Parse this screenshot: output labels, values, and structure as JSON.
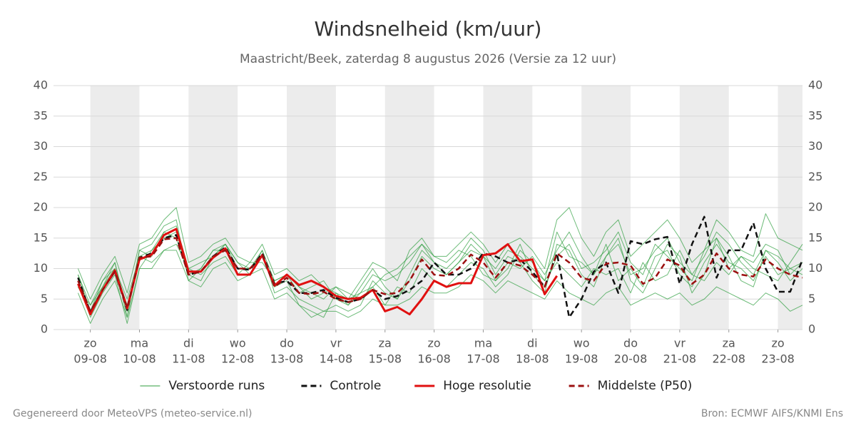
{
  "chart_data": {
    "type": "line",
    "title": "Windsnelheid (km/uur)",
    "subtitle": "Maastricht/Beek, zaterdag  8 augustus 2026 (Versie za 12 uur)",
    "footer_left": "Gegenereerd door MeteoVPS (meteo-service.nl)",
    "footer_right": "Bron: ECMWF AIFS/KNMI Ens",
    "x": [
      "2026-08-08T18:00",
      "2026-08-09T00:00",
      "2026-08-09T06:00",
      "2026-08-09T12:00",
      "2026-08-09T18:00",
      "2026-08-10T00:00",
      "2026-08-10T06:00",
      "2026-08-10T12:00",
      "2026-08-10T18:00",
      "2026-08-11T00:00",
      "2026-08-11T06:00",
      "2026-08-11T12:00",
      "2026-08-11T18:00",
      "2026-08-12T00:00",
      "2026-08-12T06:00",
      "2026-08-12T12:00",
      "2026-08-12T18:00",
      "2026-08-13T00:00",
      "2026-08-13T06:00",
      "2026-08-13T12:00",
      "2026-08-13T18:00",
      "2026-08-14T00:00",
      "2026-08-14T06:00",
      "2026-08-14T12:00",
      "2026-08-14T18:00",
      "2026-08-15T00:00",
      "2026-08-15T06:00",
      "2026-08-15T12:00",
      "2026-08-15T18:00",
      "2026-08-16T00:00",
      "2026-08-16T06:00",
      "2026-08-16T12:00",
      "2026-08-16T18:00",
      "2026-08-17T00:00",
      "2026-08-17T06:00",
      "2026-08-17T12:00",
      "2026-08-17T18:00",
      "2026-08-18T00:00",
      "2026-08-18T06:00",
      "2026-08-18T12:00",
      "2026-08-18T18:00",
      "2026-08-19T00:00",
      "2026-08-19T06:00",
      "2026-08-19T12:00",
      "2026-08-19T18:00",
      "2026-08-20T00:00",
      "2026-08-20T06:00",
      "2026-08-20T12:00",
      "2026-08-20T18:00",
      "2026-08-21T00:00",
      "2026-08-21T06:00",
      "2026-08-21T12:00",
      "2026-08-21T18:00",
      "2026-08-22T00:00",
      "2026-08-22T06:00",
      "2026-08-22T12:00",
      "2026-08-22T18:00",
      "2026-08-23T00:00",
      "2026-08-23T06:00",
      "2026-08-23T12:00"
    ],
    "xlim": [
      "2026-08-08T06:00",
      "2026-08-23T12:00"
    ],
    "xticks": [
      {
        "value": "2026-08-09T00:00",
        "label": [
          "zo",
          "09-08"
        ]
      },
      {
        "value": "2026-08-10T00:00",
        "label": [
          "ma",
          "10-08"
        ]
      },
      {
        "value": "2026-08-11T00:00",
        "label": [
          "di",
          "11-08"
        ]
      },
      {
        "value": "2026-08-12T00:00",
        "label": [
          "wo",
          "12-08"
        ]
      },
      {
        "value": "2026-08-13T00:00",
        "label": [
          "do",
          "13-08"
        ]
      },
      {
        "value": "2026-08-14T00:00",
        "label": [
          "vr",
          "14-08"
        ]
      },
      {
        "value": "2026-08-15T00:00",
        "label": [
          "za",
          "15-08"
        ]
      },
      {
        "value": "2026-08-16T00:00",
        "label": [
          "zo",
          "16-08"
        ]
      },
      {
        "value": "2026-08-17T00:00",
        "label": [
          "ma",
          "17-08"
        ]
      },
      {
        "value": "2026-08-18T00:00",
        "label": [
          "di",
          "18-08"
        ]
      },
      {
        "value": "2026-08-19T00:00",
        "label": [
          "wo",
          "19-08"
        ]
      },
      {
        "value": "2026-08-20T00:00",
        "label": [
          "do",
          "20-08"
        ]
      },
      {
        "value": "2026-08-21T00:00",
        "label": [
          "vr",
          "21-08"
        ]
      },
      {
        "value": "2026-08-22T00:00",
        "label": [
          "za",
          "22-08"
        ]
      },
      {
        "value": "2026-08-23T00:00",
        "label": [
          "zo",
          "23-08"
        ]
      }
    ],
    "ylim": [
      0,
      40
    ],
    "yticks": [
      0,
      5,
      10,
      15,
      20,
      25,
      30,
      35,
      40
    ],
    "y2lim": [
      0,
      40
    ],
    "y2ticks": [
      0,
      5,
      10,
      15,
      20,
      25,
      30,
      35,
      40
    ],
    "grid": true,
    "legend": "bottom",
    "series": [
      {
        "name": "Verstoorde runs",
        "color": "#2e9e3e",
        "members": [
          [
            7,
            4,
            7,
            11,
            2,
            13,
            14,
            17,
            18,
            8,
            10,
            13,
            14,
            11,
            9,
            13,
            6,
            7,
            5,
            4,
            3,
            4,
            3,
            4,
            8,
            6,
            5,
            9,
            13,
            11,
            10,
            12,
            15,
            13,
            9,
            12,
            11,
            8,
            6,
            14,
            13,
            9,
            7,
            12,
            15,
            8,
            6,
            10,
            14,
            12,
            6,
            9,
            15,
            12,
            8,
            7,
            13,
            11,
            8,
            10
          ],
          [
            9,
            3,
            8,
            10,
            5,
            12,
            11,
            13,
            14,
            10,
            9,
            11,
            12,
            9,
            11,
            11,
            8,
            9,
            7,
            6,
            5,
            7,
            6,
            5,
            7,
            4,
            7,
            6,
            10,
            8,
            7,
            9,
            11,
            10,
            7,
            9,
            13,
            11,
            8,
            11,
            9,
            7,
            10,
            9,
            10,
            6,
            11,
            8,
            9,
            13,
            9,
            8,
            11,
            9,
            12,
            10,
            9,
            8,
            11,
            14
          ],
          [
            8,
            2,
            6,
            9,
            1,
            10,
            13,
            15,
            16,
            9,
            8,
            12,
            14,
            10,
            10,
            12,
            7,
            8,
            4,
            3,
            2,
            6,
            4,
            7,
            10,
            7,
            5,
            8,
            12,
            10,
            9,
            11,
            13,
            12,
            8,
            11,
            10,
            12,
            9,
            13,
            16,
            12,
            9,
            14,
            8,
            10,
            7,
            12,
            13,
            9,
            7,
            11,
            14,
            11,
            10,
            8,
            12,
            9,
            10,
            11
          ],
          [
            10,
            5,
            9,
            12,
            6,
            14,
            15,
            18,
            20,
            11,
            12,
            14,
            15,
            12,
            11,
            14,
            9,
            10,
            8,
            9,
            7,
            6,
            5,
            6,
            9,
            8,
            9,
            11,
            14,
            12,
            12,
            14,
            16,
            14,
            11,
            14,
            15,
            13,
            10,
            18,
            20,
            15,
            12,
            16,
            18,
            12,
            14,
            16,
            18,
            15,
            11,
            13,
            18,
            16,
            13,
            12,
            19,
            15,
            14,
            13
          ],
          [
            6,
            1,
            5,
            8,
            2,
            10,
            10,
            13,
            13,
            8,
            7,
            10,
            11,
            8,
            9,
            10,
            5,
            6,
            4,
            2,
            3,
            3,
            2,
            3,
            5,
            4,
            4,
            5,
            7,
            6,
            6,
            7,
            9,
            8,
            6,
            8,
            7,
            6,
            5,
            8,
            6,
            5,
            4,
            6,
            7,
            4,
            5,
            6,
            5,
            6,
            4,
            5,
            7,
            6,
            5,
            4,
            6,
            5,
            3,
            4
          ],
          [
            7,
            3,
            7,
            10,
            4,
            12,
            13,
            16,
            15,
            9,
            10,
            13,
            13,
            10,
            10,
            12,
            7,
            9,
            6,
            7,
            8,
            5,
            4,
            6,
            7,
            9,
            10,
            12,
            14,
            11,
            9,
            11,
            14,
            12,
            10,
            13,
            12,
            10,
            8,
            16,
            12,
            11,
            9,
            12,
            14,
            9,
            10,
            13,
            15,
            11,
            9,
            12,
            16,
            14,
            11,
            9,
            13,
            12,
            10,
            9
          ],
          [
            9,
            4,
            8,
            11,
            3,
            13,
            12,
            16,
            17,
            10,
            11,
            12,
            14,
            11,
            10,
            13,
            8,
            9,
            7,
            5,
            6,
            7,
            5,
            8,
            11,
            10,
            8,
            13,
            15,
            12,
            11,
            13,
            12,
            9,
            8,
            10,
            14,
            9,
            7,
            12,
            14,
            10,
            11,
            13,
            16,
            11,
            9,
            14,
            12,
            10,
            8,
            13,
            15,
            10,
            12,
            11,
            14,
            13,
            9,
            11
          ]
        ]
      },
      {
        "name": "Controle",
        "color": "#111111",
        "dash": true,
        "values": [
          8.5,
          2.8,
          6.5,
          9.5,
          3.2,
          11.8,
          12.5,
          15,
          15.5,
          9,
          9.5,
          12,
          13.5,
          10,
          9.8,
          12.5,
          7.5,
          8,
          6,
          6,
          6.5,
          5.2,
          4.5,
          5,
          6.5,
          5,
          5.5,
          6.5,
          8,
          11,
          9,
          9,
          10,
          12.5,
          12,
          11,
          11.5,
          9.5,
          7,
          12.5,
          2,
          5,
          9.5,
          11,
          6,
          14.5,
          14,
          14.8,
          15.2,
          7.5,
          14,
          18.5,
          8.5,
          13,
          13,
          17.5,
          10,
          6.2,
          6.2,
          11.5
        ]
      },
      {
        "name": "Hoge resolutie",
        "color": "#e01010",
        "values": [
          7.5,
          2.5,
          6.5,
          9.7,
          3.5,
          11.5,
          12.3,
          15.5,
          16.5,
          9.5,
          9.5,
          11.8,
          13.3,
          9,
          9,
          12.2,
          7.2,
          9,
          7.3,
          8,
          7,
          5.5,
          5,
          5.2,
          6.5,
          3,
          3.7,
          2.5,
          5,
          8,
          7,
          7.6,
          7.6,
          12.2,
          12.5,
          14,
          11.2,
          11.5,
          5.8,
          8.8,
          null,
          null,
          null,
          null,
          null,
          null,
          null,
          null,
          null,
          null,
          null,
          null,
          null,
          null,
          null,
          null,
          null,
          null,
          null,
          null
        ]
      },
      {
        "name": "Middelste (P50)",
        "color": "#9b1010",
        "dash": true,
        "values": [
          8,
          3,
          6.5,
          9.5,
          3.5,
          11.8,
          12,
          14.8,
          15,
          9,
          9.5,
          12,
          13,
          10,
          10,
          12.2,
          7,
          8.5,
          6,
          5.8,
          6.2,
          5,
          4.5,
          5,
          6.5,
          5.8,
          6,
          8,
          11.5,
          9,
          8.8,
          10,
          12.3,
          11,
          8.5,
          11,
          10.5,
          9,
          7,
          12.5,
          11,
          8.5,
          8,
          10.8,
          11,
          10.5,
          7.5,
          8.5,
          11.5,
          10.5,
          7.5,
          9,
          12.5,
          10,
          9,
          8.7,
          11.5,
          10,
          9,
          8.5
        ]
      }
    ]
  }
}
